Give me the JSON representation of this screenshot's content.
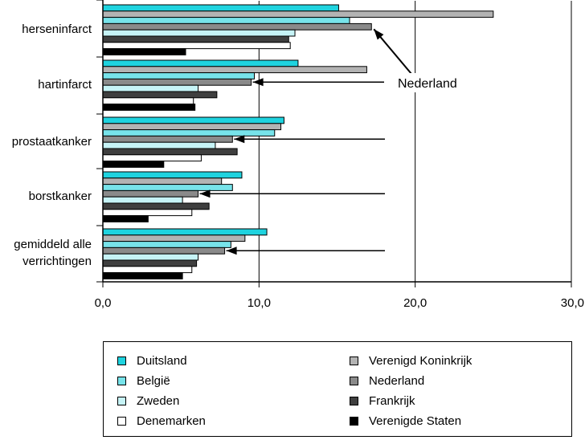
{
  "chart_data": {
    "type": "bar",
    "orientation": "horizontal",
    "categories": [
      "herseninfarct",
      "hartinfarct",
      "prostaatkanker",
      "borstkanker",
      "gemiddeld alle verrichtingen"
    ],
    "series": [
      {
        "name": "Duitsland",
        "color": "#1fd3df",
        "values": [
          15.1,
          12.5,
          11.6,
          8.9,
          10.5
        ]
      },
      {
        "name": "Verenigd Koninkrijk",
        "color": "#b3b3b3",
        "values": [
          25.0,
          16.9,
          11.4,
          7.6,
          9.1
        ]
      },
      {
        "name": "België",
        "color": "#77e3ea",
        "values": [
          15.8,
          9.7,
          11.0,
          8.3,
          8.2
        ]
      },
      {
        "name": "Nederland",
        "color": "#8a8a8a",
        "values": [
          17.2,
          9.5,
          8.3,
          6.1,
          7.8
        ]
      },
      {
        "name": "Zweden",
        "color": "#c6f3f6",
        "values": [
          12.3,
          6.1,
          7.2,
          5.1,
          6.1
        ]
      },
      {
        "name": "Frankrijk",
        "color": "#3f3f3f",
        "values": [
          11.9,
          7.3,
          8.6,
          6.8,
          6.0
        ]
      },
      {
        "name": "Denemarken",
        "color": "#ffffff",
        "values": [
          12.0,
          5.8,
          6.3,
          5.7,
          5.7
        ]
      },
      {
        "name": "Verenigde Staten",
        "color": "#000000",
        "values": [
          5.3,
          5.9,
          3.9,
          2.9,
          5.1
        ]
      }
    ],
    "xlim": [
      0,
      30
    ],
    "x_ticks": [
      "0,0",
      "10,0",
      "20,0",
      "30,0"
    ],
    "annotation": {
      "label": "Nederland",
      "series": "Nederland"
    },
    "grid": "vertical",
    "legend_position": "bottom"
  },
  "legend": {
    "columns": [
      [
        "Duitsland",
        "België",
        "Zweden",
        "Denemarken"
      ],
      [
        "Verenigd Koninkrijk",
        "Nederland",
        "Frankrijk",
        "Verenigde Staten"
      ]
    ]
  }
}
